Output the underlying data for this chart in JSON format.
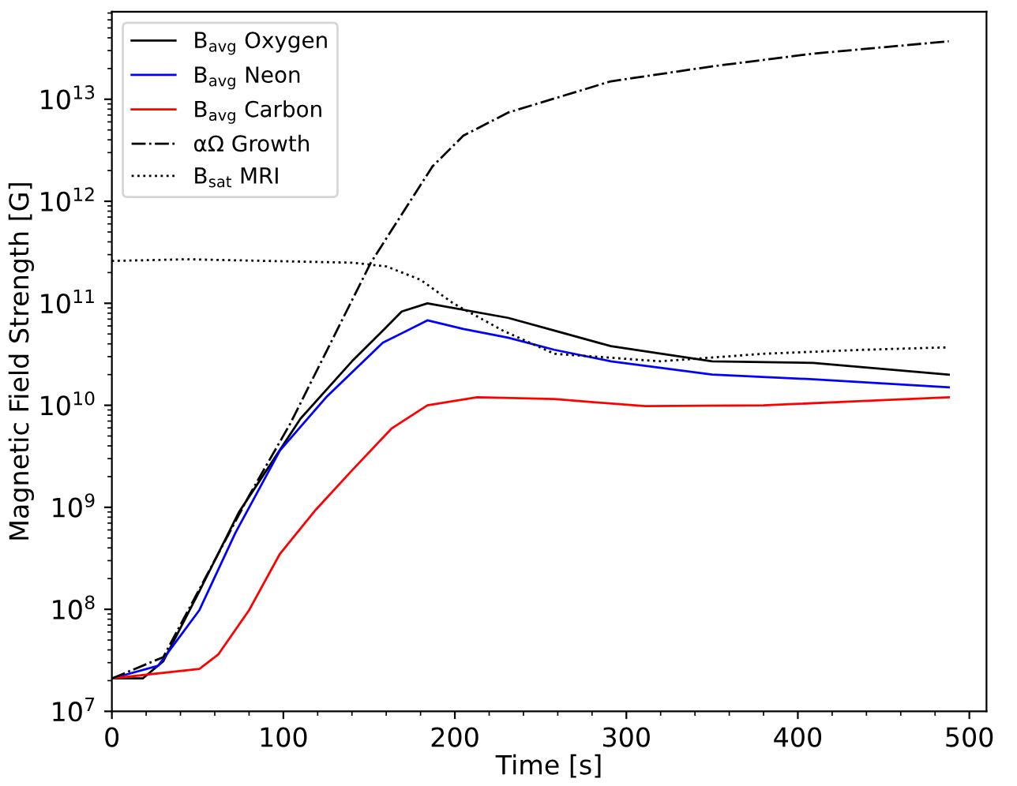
{
  "chart_data": {
    "type": "line",
    "xlabel": "Time [s]",
    "ylabel": "Magnetic Field Strength [G]",
    "log": "y",
    "xlim": [
      0,
      510
    ],
    "xticks": [
      0,
      100,
      200,
      300,
      400,
      500
    ],
    "ylim": [
      10000000.0,
      72000000000000.0
    ],
    "yticks": [
      {
        "value": 10000000.0,
        "label": "10$^{7}$"
      },
      {
        "value": 100000000.0,
        "label": "10$^{8}$"
      },
      {
        "value": 1000000000.0,
        "label": "10$^{9}$"
      },
      {
        "value": 10000000000.0,
        "label": "10$^{10}$"
      },
      {
        "value": 100000000000.0,
        "label": "10$^{11}$"
      },
      {
        "value": 1000000000000.0,
        "label": "10$^{12}$"
      },
      {
        "value": 10000000000000.0,
        "label": "10$^{13}$"
      }
    ],
    "grid": false,
    "legend": "top left",
    "series": [
      {
        "name": "B$_{avg}$ Oxygen",
        "color": "#000000",
        "line_style": "solid",
        "x": [
          0,
          18,
          30,
          51,
          74,
          110,
          140,
          158,
          169,
          184,
          231,
          258,
          291,
          350,
          409,
          488
        ],
        "values": [
          21000000.0,
          21000000.0,
          31000000.0,
          150000000.0,
          890000000.0,
          7400000000.0,
          27000000000.0,
          54000000000.0,
          83000000000.0,
          100000000000.0,
          72000000000.0,
          54000000000.0,
          38000000000.0,
          27000000000.0,
          26000000000.0,
          20000000000.0
        ]
      },
      {
        "name": "B$_{avg}$ Neon",
        "color": "#0000ff",
        "line_style": "solid",
        "x": [
          0,
          27,
          51,
          72,
          98,
          125,
          158,
          184,
          205,
          231,
          258,
          291,
          350,
          409,
          488
        ],
        "values": [
          21000000.0,
          28000000.0,
          98000000.0,
          560000000.0,
          3600000000.0,
          12000000000.0,
          41000000000.0,
          68000000000.0,
          56000000000.0,
          46000000000.0,
          35000000000.0,
          27000000000.0,
          20000000000.0,
          18000000000.0,
          15000000000.0
        ]
      },
      {
        "name": "B$_{avg}$ Carbon",
        "color": "#ff0000",
        "line_style": "solid",
        "x": [
          0,
          51,
          62,
          80,
          98,
          119,
          140,
          163,
          184,
          213,
          258,
          311,
          380,
          438,
          488
        ],
        "values": [
          21000000.0,
          26000000.0,
          36000000.0,
          98000000.0,
          350000000.0,
          950000000.0,
          2300000000.0,
          5900000000.0,
          10000000000.0,
          12000000000.0,
          11500000000.0,
          9800000000.0,
          10000000000.0,
          11000000000.0,
          12000000000.0
        ]
      },
      {
        "name": "αΩ Growth",
        "color": "#000000",
        "line_style": "dashdot",
        "x": [
          0,
          30,
          80,
          104,
          151,
          172,
          187,
          205,
          231,
          291,
          350,
          409,
          488
        ],
        "values": [
          21000000.0,
          34000000.0,
          1300000000.0,
          6600000000.0,
          250000000000.0,
          890000000000.0,
          2200000000000.0,
          4400000000000.0,
          7400000000000.0,
          15000000000000.0,
          21000000000000.0,
          28000000000000.0,
          37000000000000.0
        ]
      },
      {
        "name": "B$_{sat}$ MRI",
        "color": "#000000",
        "line_style": "dotted",
        "x": [
          0,
          44,
          140,
          160,
          180,
          199,
          228,
          258,
          320,
          380,
          438,
          488
        ],
        "values": [
          260000000000.0,
          270000000000.0,
          250000000000.0,
          230000000000.0,
          170000000000.0,
          100000000000.0,
          54000000000.0,
          32000000000.0,
          27000000000.0,
          32000000000.0,
          35000000000.0,
          37000000000.0
        ]
      }
    ]
  }
}
